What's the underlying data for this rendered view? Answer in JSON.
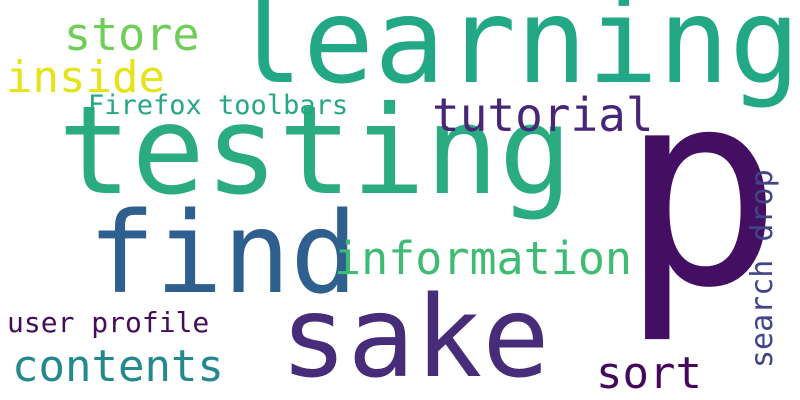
{
  "words": [
    {
      "id": "p",
      "text": "p",
      "color": "#440f62"
    },
    {
      "id": "learning",
      "text": "learning",
      "color": "#22a884"
    },
    {
      "id": "testing",
      "text": "testing",
      "color": "#2aab80"
    },
    {
      "id": "find",
      "text": "find",
      "color": "#2f5f8e"
    },
    {
      "id": "sake",
      "text": "sake",
      "color": "#472c7a"
    },
    {
      "id": "information",
      "text": "information",
      "color": "#3fbc73"
    },
    {
      "id": "tutorial",
      "text": "tutorial",
      "color": "#482677"
    },
    {
      "id": "store",
      "text": "store",
      "color": "#6ece58"
    },
    {
      "id": "inside",
      "text": "inside",
      "color": "#e4e419"
    },
    {
      "id": "firefox-toolbars",
      "text": "Firefox toolbars",
      "color": "#26a784"
    },
    {
      "id": "contents",
      "text": "contents",
      "color": "#23898e"
    },
    {
      "id": "user-profile",
      "text": "user profile",
      "color": "#440c5a"
    },
    {
      "id": "sort",
      "text": "sort",
      "color": "#46085c"
    },
    {
      "id": "search-drop",
      "text": "search drop",
      "color": "#414487"
    }
  ]
}
